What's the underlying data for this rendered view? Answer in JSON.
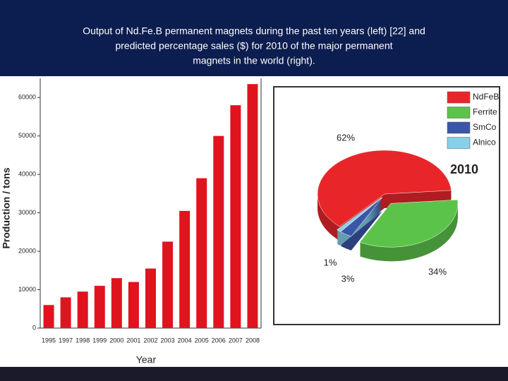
{
  "title": [
    "Output of Nd.Fe.B permanent magnets during the past ten years (left) [22] and",
    "predicted percentage sales ($) for 2010 of the major permanent",
    "magnets in the world (right)."
  ],
  "chart_data": [
    {
      "type": "bar",
      "x_label": "Year",
      "y_label": "Production / tons",
      "categories": [
        "1995",
        "1997",
        "1998",
        "1999",
        "2000",
        "2001",
        "2002",
        "2003",
        "2004",
        "2005",
        "2006",
        "2007",
        "2008"
      ],
      "values": [
        6000,
        8000,
        9500,
        11000,
        13000,
        12000,
        15500,
        22500,
        30500,
        39000,
        50000,
        58000,
        63500
      ],
      "color": "#e0141e",
      "ylim": [
        0,
        65000
      ],
      "yticks": [
        0,
        10000,
        20000,
        30000,
        40000,
        50000,
        60000
      ]
    },
    {
      "type": "pie",
      "annotation": "2010",
      "categories": [
        "NdFeB",
        "Ferrite",
        "SmCo",
        "Alnico"
      ],
      "values": [
        62,
        34,
        3,
        1
      ],
      "value_labels": [
        "62%",
        "34%",
        "3%",
        "1%"
      ],
      "colors": [
        "#e8262a",
        "#5cc34a",
        "#3a56a8",
        "#86d0ea"
      ],
      "legend": "upper right"
    }
  ]
}
